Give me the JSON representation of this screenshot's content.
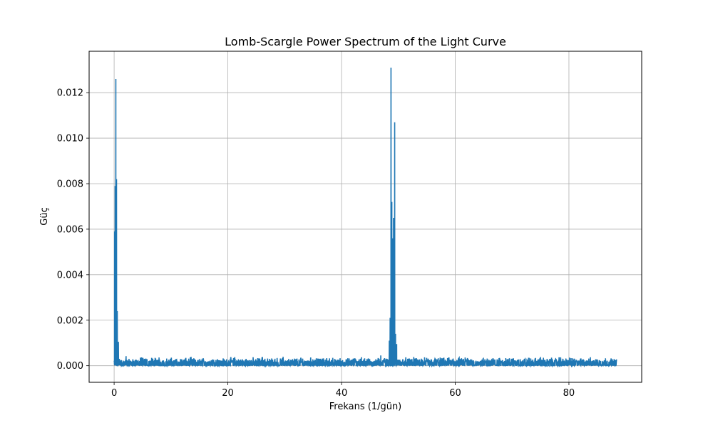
{
  "chart_data": {
    "type": "line",
    "title": "Lomb-Scargle Power Spectrum of the Light Curve",
    "xlabel": "Frekans (1/gün)",
    "ylabel": "Güç",
    "xlim": [
      -4.4,
      92.8
    ],
    "ylim": [
      -0.00073,
      0.01382
    ],
    "grid": true,
    "x_ticks": [
      {
        "value": 0,
        "label": "0"
      },
      {
        "value": 20,
        "label": "20"
      },
      {
        "value": 40,
        "label": "40"
      },
      {
        "value": 60,
        "label": "60"
      },
      {
        "value": 80,
        "label": "80"
      }
    ],
    "y_ticks": [
      {
        "value": 0.0,
        "label": "0.000"
      },
      {
        "value": 0.002,
        "label": "0.002"
      },
      {
        "value": 0.004,
        "label": "0.004"
      },
      {
        "value": 0.006,
        "label": "0.006"
      },
      {
        "value": 0.008,
        "label": "0.008"
      },
      {
        "value": 0.01,
        "label": "0.010"
      },
      {
        "value": 0.012,
        "label": "0.012"
      }
    ],
    "x_range": [
      0.0,
      88.4
    ],
    "noise_floor": 0.00015,
    "noise_max": 0.0004,
    "peaks": [
      {
        "x": 0.08,
        "y": 0.0059
      },
      {
        "x": 0.18,
        "y": 0.0079
      },
      {
        "x": 0.3,
        "y": 0.0126
      },
      {
        "x": 0.42,
        "y": 0.0082
      },
      {
        "x": 0.55,
        "y": 0.0024
      },
      {
        "x": 0.75,
        "y": 0.00105
      },
      {
        "x": 2.1,
        "y": 0.00042
      },
      {
        "x": 7.9,
        "y": 0.00036
      },
      {
        "x": 26.1,
        "y": 0.00038
      },
      {
        "x": 46.9,
        "y": 0.00045
      },
      {
        "x": 48.4,
        "y": 0.0011
      },
      {
        "x": 48.55,
        "y": 0.0021
      },
      {
        "x": 48.7,
        "y": 0.0131
      },
      {
        "x": 48.85,
        "y": 0.0072
      },
      {
        "x": 49.0,
        "y": 0.0056
      },
      {
        "x": 49.15,
        "y": 0.0065
      },
      {
        "x": 49.35,
        "y": 0.0107
      },
      {
        "x": 49.5,
        "y": 0.0014
      },
      {
        "x": 49.7,
        "y": 0.00095
      },
      {
        "x": 58.9,
        "y": 0.00036
      },
      {
        "x": 75.0,
        "y": 0.00038
      }
    ],
    "series_color": "#1f77b4",
    "grid_color": "#b0b0b0"
  }
}
